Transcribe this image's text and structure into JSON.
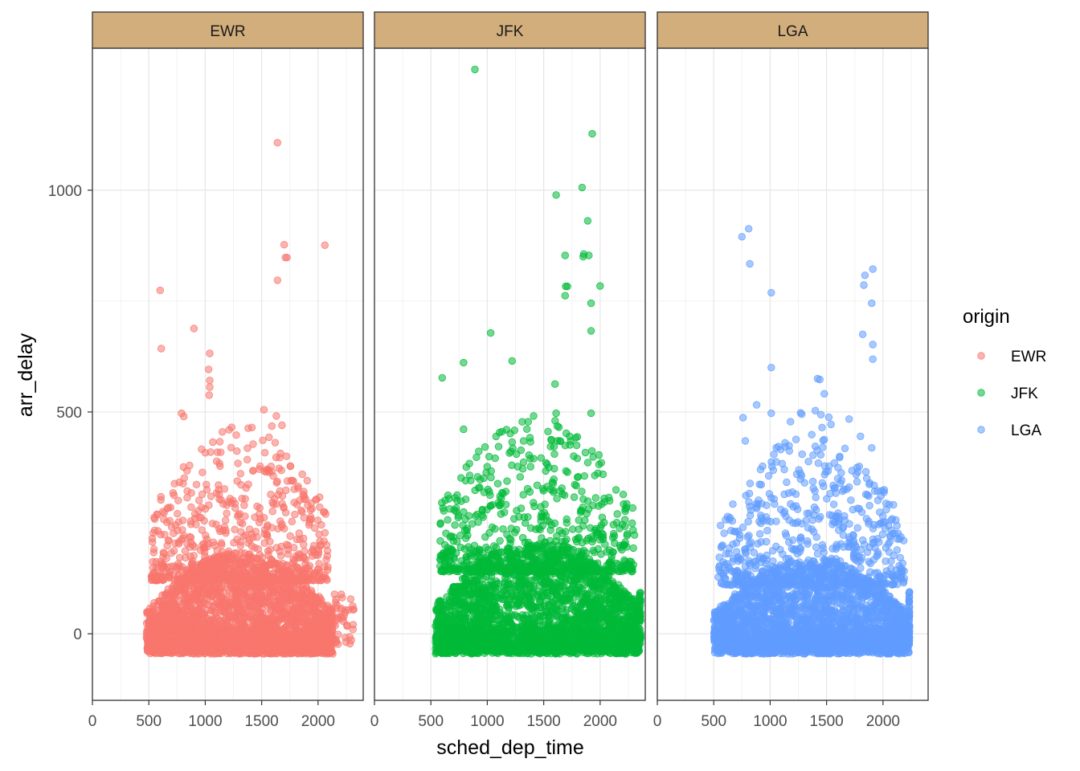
{
  "chart_data": {
    "type": "scatter",
    "facet_by": "origin",
    "xlabel": "sched_dep_time",
    "ylabel": "arr_delay",
    "xlim": [
      0,
      2400
    ],
    "ylim": [
      -150,
      1320
    ],
    "x_ticks": [
      0,
      500,
      1000,
      1500,
      2000
    ],
    "y_ticks": [
      0,
      500,
      1000
    ],
    "grid": true,
    "legend": {
      "title": "origin",
      "position": "right",
      "entries": [
        "EWR",
        "JFK",
        "LGA"
      ]
    },
    "panels": [
      {
        "name": "EWR",
        "color": "#F8766D",
        "density": {
          "x_range": [
            480,
            2130
          ],
          "core_y": [
            -45,
            120
          ],
          "sparse_y_max": 440,
          "tail_x": [
            2130,
            2320
          ]
        },
        "outliers": [
          [
            1640,
            1107
          ],
          [
            1700,
            877
          ],
          [
            1710,
            848
          ],
          [
            1725,
            848
          ],
          [
            2060,
            876
          ],
          [
            1640,
            797
          ],
          [
            600,
            774
          ],
          [
            610,
            643
          ],
          [
            900,
            688
          ],
          [
            1040,
            632
          ],
          [
            1030,
            596
          ],
          [
            1040,
            571
          ],
          [
            1040,
            556
          ],
          [
            1035,
            538
          ],
          [
            790,
            497
          ],
          [
            810,
            490
          ],
          [
            1520,
            505
          ],
          [
            1630,
            491
          ],
          [
            1680,
            470
          ],
          [
            1590,
            468
          ],
          [
            1510,
            436
          ],
          [
            1565,
            443
          ],
          [
            1720,
            400
          ],
          [
            1660,
            397
          ]
        ]
      },
      {
        "name": "JFK",
        "color": "#00BA38",
        "density": {
          "x_range": [
            540,
            2345
          ],
          "core_y": [
            -45,
            140
          ],
          "sparse_y_max": 460,
          "tail_x": [
            2345,
            2360
          ]
        },
        "outliers": [
          [
            890,
            1272
          ],
          [
            1930,
            1127
          ],
          [
            1840,
            1006
          ],
          [
            1610,
            989
          ],
          [
            1890,
            931
          ],
          [
            1855,
            856
          ],
          [
            1690,
            853
          ],
          [
            1900,
            853
          ],
          [
            1850,
            850
          ],
          [
            2000,
            784
          ],
          [
            1695,
            783
          ],
          [
            1710,
            783
          ],
          [
            1690,
            762
          ],
          [
            1920,
            745
          ],
          [
            1920,
            683
          ],
          [
            1030,
            678
          ],
          [
            1220,
            615
          ],
          [
            790,
            611
          ],
          [
            600,
            577
          ],
          [
            1600,
            563
          ],
          [
            1610,
            497
          ],
          [
            1920,
            497
          ],
          [
            1620,
            468
          ],
          [
            1700,
            452
          ],
          [
            1730,
            445
          ],
          [
            1620,
            435
          ],
          [
            790,
            461
          ],
          [
            980,
            421
          ],
          [
            1220,
            432
          ],
          [
            1650,
            434
          ]
        ]
      },
      {
        "name": "LGA",
        "color": "#619CFF",
        "density": {
          "x_range": [
            500,
            2230
          ],
          "core_y": [
            -45,
            110
          ],
          "sparse_y_max": 420,
          "tail_x": [
            2230,
            2235
          ]
        },
        "outliers": [
          [
            810,
            913
          ],
          [
            750,
            895
          ],
          [
            820,
            834
          ],
          [
            1910,
            822
          ],
          [
            1840,
            808
          ],
          [
            1830,
            786
          ],
          [
            1010,
            769
          ],
          [
            1900,
            745
          ],
          [
            1820,
            675
          ],
          [
            1910,
            652
          ],
          [
            1910,
            619
          ],
          [
            1010,
            600
          ],
          [
            1420,
            575
          ],
          [
            1440,
            573
          ],
          [
            1480,
            541
          ],
          [
            880,
            516
          ],
          [
            1010,
            497
          ],
          [
            1270,
            498
          ],
          [
            1280,
            495
          ],
          [
            1400,
            503
          ],
          [
            1450,
            494
          ],
          [
            1520,
            488
          ],
          [
            1700,
            484
          ],
          [
            1540,
            472
          ],
          [
            1460,
            465
          ],
          [
            1180,
            478
          ],
          [
            1800,
            445
          ],
          [
            1900,
            419
          ],
          [
            760,
            487
          ],
          [
            780,
            435
          ]
        ]
      }
    ]
  }
}
